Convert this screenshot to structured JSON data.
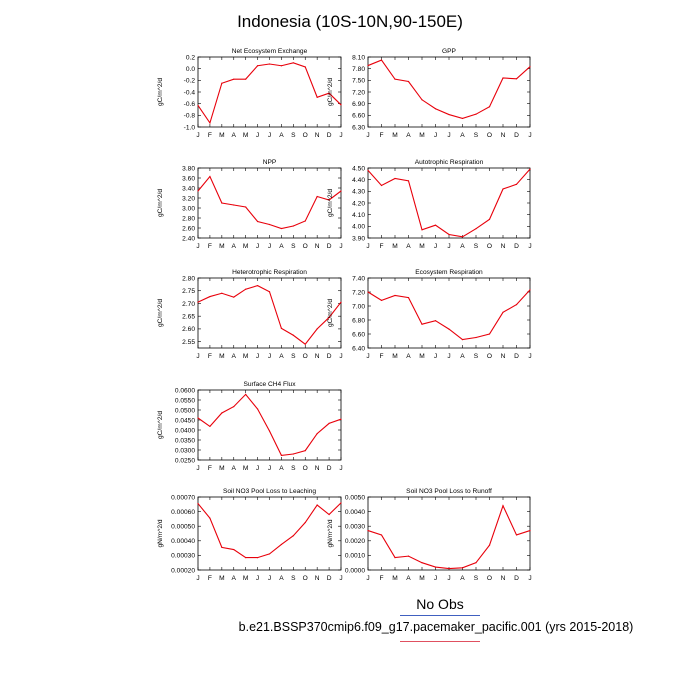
{
  "title": "Indonesia (10S-10N,90-150E)",
  "legend": {
    "label": "No Obs"
  },
  "footer": "b.e21.BSSP370cmip6.f09_g17.pacemaker_pacific.001 (yrs 2015-2018)",
  "colors": {
    "line": "#e8000b",
    "legend_blue": "#4060c0",
    "legend_red": "#e05060"
  },
  "chart_data": [
    {
      "type": "line",
      "title": "Net Ecosystem Exchange",
      "ylabel": "gC/m^2/d",
      "categories": [
        "J",
        "F",
        "M",
        "A",
        "M",
        "J",
        "J",
        "A",
        "S",
        "O",
        "N",
        "D",
        "J"
      ],
      "yticks": [
        "0.2",
        "0.0",
        "-0.2",
        "-0.4",
        "-0.6",
        "-0.8",
        "-1.0"
      ],
      "ylim": [
        -1.0,
        0.2
      ],
      "values": [
        -0.63,
        -0.93,
        -0.25,
        -0.18,
        -0.18,
        0.05,
        0.08,
        0.05,
        0.1,
        0.03,
        -0.49,
        -0.42,
        -0.62
      ]
    },
    {
      "type": "line",
      "title": "GPP",
      "ylabel": "gC/m^2/d",
      "categories": [
        "J",
        "F",
        "M",
        "A",
        "M",
        "J",
        "J",
        "A",
        "S",
        "O",
        "N",
        "D",
        "J"
      ],
      "yticks": [
        "8.10",
        "7.80",
        "7.50",
        "7.20",
        "6.90",
        "6.60",
        "6.30"
      ],
      "ylim": [
        6.3,
        8.1
      ],
      "values": [
        7.88,
        8.02,
        7.53,
        7.47,
        7.0,
        6.77,
        6.62,
        6.52,
        6.63,
        6.82,
        7.56,
        7.54,
        7.85
      ]
    },
    {
      "type": "line",
      "title": "NPP",
      "ylabel": "gC/m^2/d",
      "categories": [
        "J",
        "F",
        "M",
        "A",
        "M",
        "J",
        "J",
        "A",
        "S",
        "O",
        "N",
        "D",
        "J"
      ],
      "yticks": [
        "3.80",
        "3.60",
        "3.40",
        "3.20",
        "3.00",
        "2.80",
        "2.60",
        "2.40"
      ],
      "ylim": [
        2.4,
        3.8
      ],
      "values": [
        3.34,
        3.63,
        3.1,
        3.06,
        3.02,
        2.73,
        2.67,
        2.59,
        2.64,
        2.74,
        3.23,
        3.16,
        3.34
      ]
    },
    {
      "type": "line",
      "title": "Autotrophic Respiration",
      "ylabel": "gC/m^2/d",
      "categories": [
        "J",
        "F",
        "M",
        "A",
        "M",
        "J",
        "J",
        "A",
        "S",
        "O",
        "N",
        "D",
        "J"
      ],
      "yticks": [
        "4.50",
        "4.40",
        "4.30",
        "4.20",
        "4.10",
        "4.00",
        "3.90"
      ],
      "ylim": [
        3.9,
        4.5
      ],
      "values": [
        4.48,
        4.35,
        4.41,
        4.39,
        3.97,
        4.01,
        3.93,
        3.91,
        3.98,
        4.06,
        4.32,
        4.36,
        4.49
      ]
    },
    {
      "type": "line",
      "title": "Heterotrophic Respiration",
      "ylabel": "gC/m^2/d",
      "categories": [
        "J",
        "F",
        "M",
        "A",
        "M",
        "J",
        "J",
        "A",
        "S",
        "O",
        "N",
        "D",
        "J"
      ],
      "yticks": [
        "2.80",
        "2.75",
        "2.70",
        "2.65",
        "2.60",
        "2.55"
      ],
      "ylim": [
        2.525,
        2.8
      ],
      "values": [
        2.705,
        2.727,
        2.74,
        2.725,
        2.756,
        2.77,
        2.746,
        2.602,
        2.575,
        2.54,
        2.6,
        2.645,
        2.705
      ]
    },
    {
      "type": "line",
      "title": "Ecosystem Respiration",
      "ylabel": "gC/m^2/d",
      "categories": [
        "J",
        "F",
        "M",
        "A",
        "M",
        "J",
        "J",
        "A",
        "S",
        "O",
        "N",
        "D",
        "J"
      ],
      "yticks": [
        "7.40",
        "7.20",
        "7.00",
        "6.80",
        "6.60",
        "6.40"
      ],
      "ylim": [
        6.4,
        7.4
      ],
      "values": [
        7.2,
        7.08,
        7.15,
        7.12,
        6.74,
        6.79,
        6.67,
        6.52,
        6.55,
        6.6,
        6.91,
        7.02,
        7.23
      ]
    },
    {
      "type": "line",
      "title": "Surface CH4 Flux",
      "ylabel": "gC/m^2/d",
      "categories": [
        "J",
        "F",
        "M",
        "A",
        "M",
        "J",
        "J",
        "A",
        "S",
        "O",
        "N",
        "D",
        "J"
      ],
      "yticks": [
        "0.0600",
        "0.0550",
        "0.0500",
        "0.0450",
        "0.0400",
        "0.0350",
        "0.0300",
        "0.0250"
      ],
      "ylim": [
        0.025,
        0.06
      ],
      "values": [
        0.046,
        0.0418,
        0.0485,
        0.0517,
        0.0578,
        0.0505,
        0.0395,
        0.0273,
        0.028,
        0.0297,
        0.0382,
        0.0433,
        0.0454
      ]
    },
    {
      "type": "line",
      "title": "Soil NO3 Pool Loss to Leaching",
      "ylabel": "gN/m^2/d",
      "categories": [
        "J",
        "F",
        "M",
        "A",
        "M",
        "J",
        "J",
        "A",
        "S",
        "O",
        "N",
        "D",
        "J"
      ],
      "yticks": [
        "0.00070",
        "0.00060",
        "0.00050",
        "0.00040",
        "0.00030",
        "0.00020"
      ],
      "ylim": [
        0.0002,
        0.0007
      ],
      "values": [
        0.000655,
        0.000555,
        0.000355,
        0.00034,
        0.000285,
        0.000285,
        0.00031,
        0.000375,
        0.000435,
        0.000525,
        0.000645,
        0.00058,
        0.00066
      ]
    },
    {
      "type": "line",
      "title": "Soil NO3 Pool Loss to Runoff",
      "ylabel": "gN/m^2/d",
      "categories": [
        "J",
        "F",
        "M",
        "A",
        "M",
        "J",
        "J",
        "A",
        "S",
        "O",
        "N",
        "D",
        "J"
      ],
      "yticks": [
        "0.0050",
        "0.0040",
        "0.0030",
        "0.0020",
        "0.0010",
        "0.0000"
      ],
      "ylim": [
        0.0,
        0.005
      ],
      "values": [
        0.0027,
        0.0024,
        0.00085,
        0.00095,
        0.0005,
        0.0002,
        0.0001,
        0.00015,
        0.0005,
        0.0017,
        0.0044,
        0.0024,
        0.0027
      ]
    }
  ]
}
